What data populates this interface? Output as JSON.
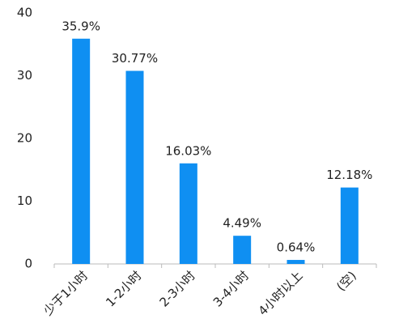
{
  "chart_data": {
    "type": "bar",
    "categories": [
      "少于1小时",
      "1-2小时",
      "2-3小时",
      "3-4小时",
      "4小时以上",
      "(空)"
    ],
    "values": [
      35.9,
      30.77,
      16.03,
      4.49,
      0.64,
      12.18
    ],
    "value_labels": [
      "35.9%",
      "30.77%",
      "16.03%",
      "4.49%",
      "0.64%",
      "12.18%"
    ],
    "color": "#0f8ff2",
    "ylim": [
      0,
      40
    ],
    "yticks": [
      0,
      10,
      20,
      30,
      40
    ],
    "grid": false
  }
}
